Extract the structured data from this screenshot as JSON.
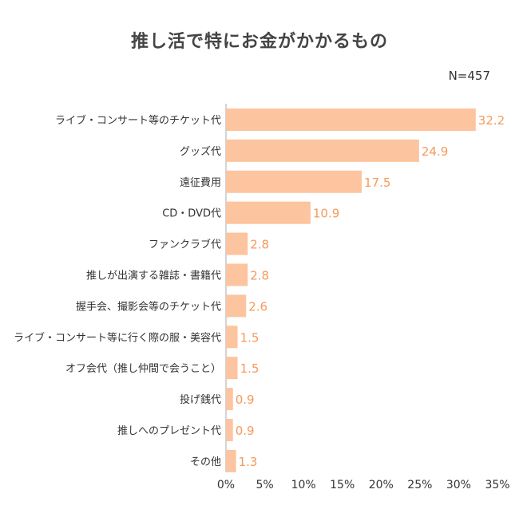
{
  "title": "推し活で特にお金がかかるもの",
  "sample_size": "N=457",
  "chart_data": {
    "type": "bar",
    "orientation": "horizontal",
    "title": "推し活で特にお金がかかるもの",
    "categories": [
      "ライブ・コンサート等のチケット代",
      "グッズ代",
      "遠征費用",
      "CD・DVD代",
      "ファンクラブ代",
      "推しが出演する雑誌・書籍代",
      "握手会、撮影会等のチケット代",
      "ライブ・コンサート等に行く際の服・美容代",
      "オフ会代（推し仲間で会うこと）",
      "投げ銭代",
      "推しへのプレゼント代",
      "その他"
    ],
    "values": [
      32.2,
      24.9,
      17.5,
      10.9,
      2.8,
      2.8,
      2.6,
      1.5,
      1.5,
      0.9,
      0.9,
      1.3
    ],
    "value_labels": [
      "32.2",
      "24.9",
      "17.5",
      "10.9",
      "2.8",
      "2.8",
      "2.6",
      "1.5",
      "1.5",
      "0.9",
      "0.9",
      "1.3"
    ],
    "xlim": [
      0,
      35
    ],
    "x_ticks": [
      "0%",
      "5%",
      "10%",
      "15%",
      "20%",
      "25%",
      "30%",
      "35%"
    ],
    "x_tick_values": [
      0,
      5,
      10,
      15,
      20,
      25,
      30,
      35
    ],
    "grid": false,
    "legend": "none",
    "bar_color": "#FCC49F",
    "label_color": "#F59A5B",
    "axis_color": "#AAAAAA"
  }
}
